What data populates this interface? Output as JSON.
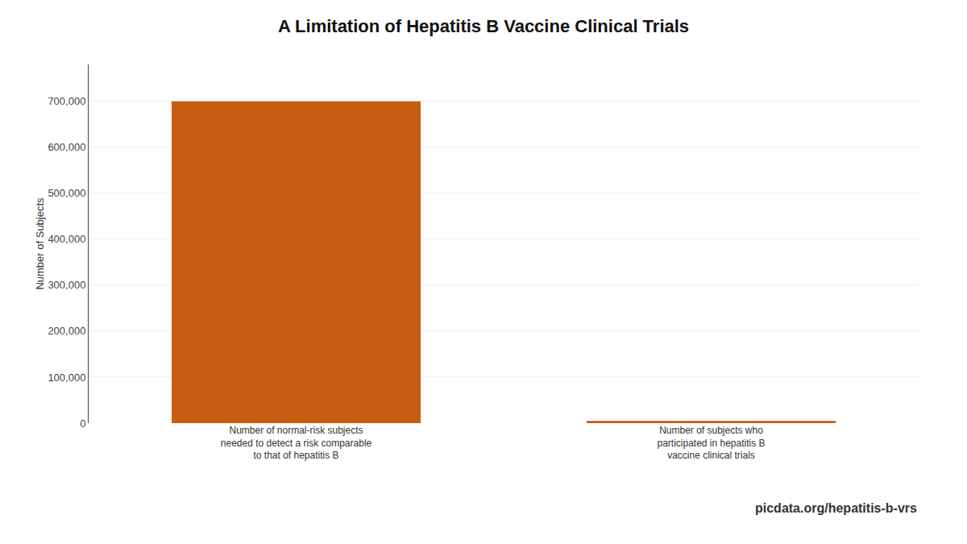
{
  "chart_data": {
    "type": "bar",
    "title": "A Limitation of Hepatitis B Vaccine Clinical Trials",
    "ylabel": "Number of Subjects",
    "categories": [
      "Number of normal-risk subjects\nneeded to detect a risk comparable\nto that of hepatitis B",
      "Number of subjects who\nparticipated in hepatitis B\nvaccine clinical trials"
    ],
    "values": [
      700000,
      5000
    ],
    "color": "#C85D12",
    "ylim": [
      0,
      780000
    ],
    "yticks": [
      0,
      {
        "value": 100000,
        "label": "100,000"
      },
      {
        "value": 200000,
        "label": "200,000"
      },
      {
        "value": 300000,
        "label": "300,000"
      },
      {
        "value": 400000,
        "label": "400,000"
      },
      {
        "value": 500000,
        "label": "500,000"
      },
      {
        "value": 600000,
        "label": "600,000"
      },
      {
        "value": 700000,
        "label": "700,000"
      }
    ],
    "grid": true,
    "annotations": [
      "picdata.org/hepatitis-b-vrs"
    ]
  }
}
